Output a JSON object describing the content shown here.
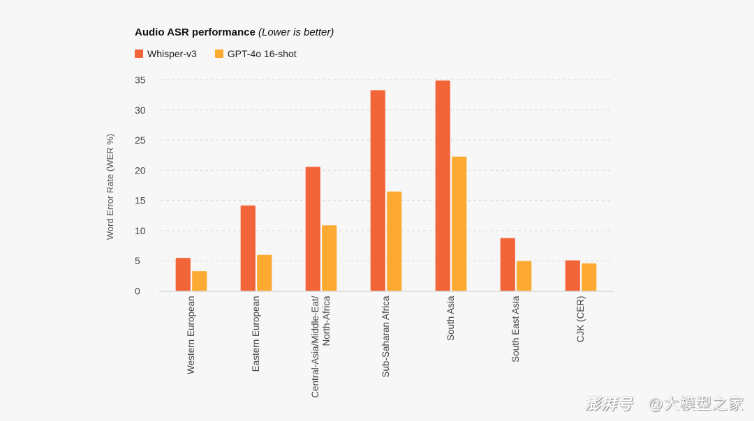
{
  "chart_data": {
    "type": "bar",
    "title": "Audio ASR performance",
    "subtitle": "(Lower is better)",
    "xlabel": "",
    "ylabel": "Word Error Rate (WER %)",
    "ylim": [
      0,
      35
    ],
    "yticks": [
      0,
      5,
      10,
      15,
      20,
      25,
      30,
      35
    ],
    "grid": true,
    "legend_position": "top-left",
    "categories": [
      [
        "Western European"
      ],
      [
        "Eastern European"
      ],
      [
        "Central-Asia/Middle-Eat/",
        "North-Africa"
      ],
      [
        "Sub-Saharan Africa"
      ],
      [
        "South Asia"
      ],
      [
        "South East Asia"
      ],
      [
        "CJK (CER)"
      ]
    ],
    "series": [
      {
        "name": "Whisper-v3",
        "color": "#F26539",
        "values": [
          5.5,
          14.2,
          20.6,
          33.3,
          34.9,
          8.8,
          5.1
        ]
      },
      {
        "name": "GPT-4o 16-shot",
        "color": "#FDAA33",
        "values": [
          3.3,
          6.0,
          10.9,
          16.5,
          22.3,
          5.0,
          4.6
        ]
      }
    ]
  },
  "watermark": {
    "brand": "澎湃号",
    "handle": "@大模型之家"
  }
}
